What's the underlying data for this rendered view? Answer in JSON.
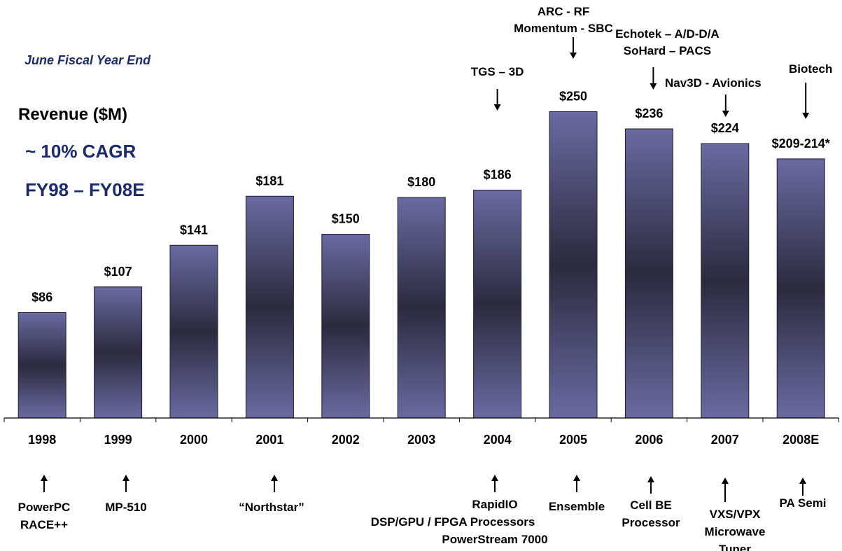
{
  "header": {
    "fiscal_note": "June Fiscal Year End",
    "title": "Revenue ($M)",
    "cagr": "~ 10% CAGR",
    "range": "FY98 –  FY08E"
  },
  "colors": {
    "bar_edge": "#6a6aa2",
    "bar_mid": "#2b2a3e",
    "axis": "#000000"
  },
  "chart_data": {
    "type": "bar",
    "ylabel": "Revenue ($M)",
    "ylim": [
      0,
      270
    ],
    "categories": [
      "1998",
      "1999",
      "2000",
      "2001",
      "2002",
      "2003",
      "2004",
      "2005",
      "2006",
      "2007",
      "2008E"
    ],
    "values": [
      86,
      107,
      141,
      181,
      150,
      180,
      186,
      250,
      236,
      224,
      211.5
    ],
    "value_labels": [
      "$86",
      "$107",
      "$141",
      "$181",
      "$150",
      "$180",
      "$186",
      "$250",
      "$236",
      "$224",
      "$209-214*"
    ],
    "top_annotations": [
      {
        "category": "2004",
        "lines": [
          "TGS – 3D"
        ]
      },
      {
        "category": "2005",
        "lines": [
          "ARC - RF",
          "Momentum -  SBC"
        ]
      },
      {
        "category": "2006",
        "lines": [
          "Echotek –  A/D-D/A",
          "SoHard – PACS"
        ]
      },
      {
        "category": "2007",
        "lines": [
          "Nav3D -  Avionics"
        ]
      },
      {
        "category": "2008E",
        "lines": [
          "Biotech"
        ]
      }
    ],
    "bottom_annotations": [
      {
        "category": "1998",
        "lines": [
          "PowerPC",
          "RACE++"
        ]
      },
      {
        "category": "1999",
        "lines": [
          "MP-510"
        ]
      },
      {
        "category": "2001",
        "lines": [
          "“Northstar”"
        ]
      },
      {
        "category": "2004",
        "lines": [
          "RapidIO",
          "DSP/GPU / FPGA Processors",
          "PowerStream 7000"
        ]
      },
      {
        "category": "2005",
        "lines": [
          "Ensemble"
        ]
      },
      {
        "category": "2006",
        "lines": [
          "Cell BE",
          "Processor"
        ]
      },
      {
        "category": "2007",
        "lines": [
          "VXS/VPX",
          "Microwave",
          "Tuner"
        ]
      },
      {
        "category": "2008E",
        "lines": [
          "PA Semi"
        ]
      }
    ]
  }
}
